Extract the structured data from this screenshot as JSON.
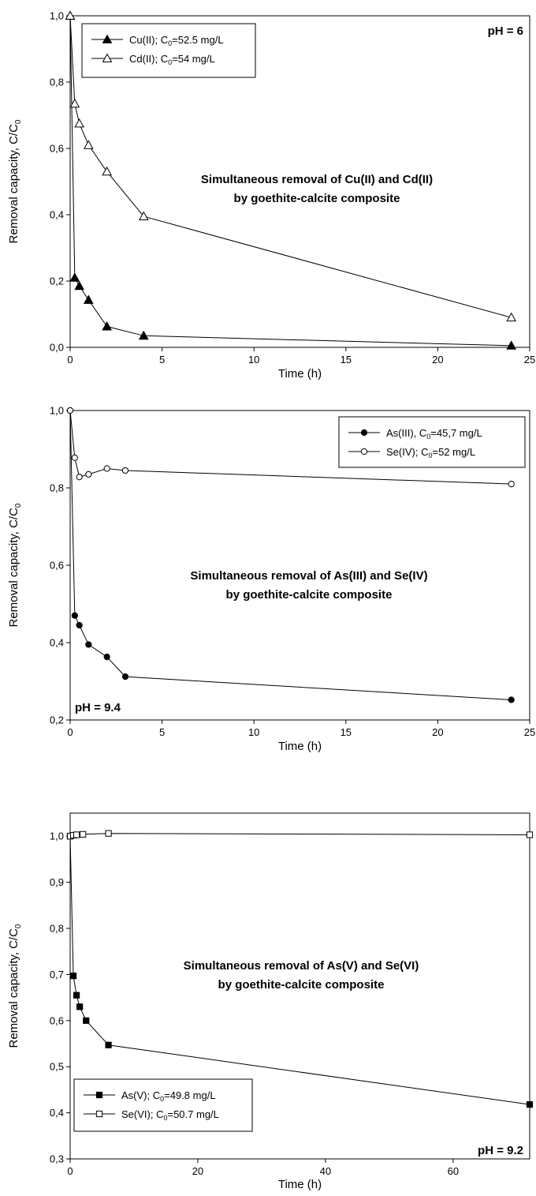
{
  "chart_data": [
    {
      "type": "line",
      "xlabel": "Time (h)",
      "ylabel": "Removal capacity, C/C",
      "ylabel_sub": "0",
      "xlim": [
        0,
        25
      ],
      "ylim": [
        0,
        1.0
      ],
      "xticks": [
        "0",
        "5",
        "10",
        "15",
        "20",
        "25"
      ],
      "yticks": [
        "0,0",
        "0,2",
        "0,4",
        "0,6",
        "0,8",
        "1,0"
      ],
      "grid": false,
      "legend_position": "top-left",
      "annotation": [
        "Simultaneous removal of Cu(II) and Cd(II)",
        "by goethite-calcite composite"
      ],
      "ph_label": "pH = 6",
      "ph_position": "top-right",
      "series": [
        {
          "name": "Cu(II); C",
          "name_sub": "0",
          "name_rest": "=52.5 mg/L",
          "marker": "triangle-filled",
          "x": [
            0,
            0.25,
            0.5,
            1,
            2,
            4,
            24
          ],
          "y": [
            1.0,
            0.21,
            0.185,
            0.143,
            0.063,
            0.035,
            0.005
          ]
        },
        {
          "name": "Cd(II); C",
          "name_sub": "0",
          "name_rest": "=54 mg/L",
          "marker": "triangle-open",
          "x": [
            0,
            0.25,
            0.5,
            1,
            2,
            4,
            24
          ],
          "y": [
            1.0,
            0.735,
            0.675,
            0.61,
            0.53,
            0.395,
            0.09
          ]
        }
      ]
    },
    {
      "type": "line",
      "xlabel": "Time (h)",
      "ylabel": "Removal capacity, C/C",
      "ylabel_sub": "0",
      "xlim": [
        0,
        25
      ],
      "ylim": [
        0.2,
        1.0
      ],
      "xticks": [
        "0",
        "5",
        "10",
        "15",
        "20",
        "25"
      ],
      "yticks": [
        "0,2",
        "0,4",
        "0,6",
        "0,8",
        "1,0"
      ],
      "grid": false,
      "legend_position": "top-right",
      "annotation": [
        "Simultaneous removal of As(III) and Se(IV)",
        "by goethite-calcite composite"
      ],
      "ph_label": "pH = 9.4",
      "ph_position": "bottom-left",
      "series": [
        {
          "name": "As(III), C",
          "name_sub": "0",
          "name_rest": "=45,7 mg/L",
          "marker": "circle-filled",
          "x": [
            0,
            0.25,
            0.5,
            1,
            2,
            3,
            24
          ],
          "y": [
            1.0,
            0.47,
            0.445,
            0.395,
            0.363,
            0.312,
            0.252
          ]
        },
        {
          "name": "Se(IV); C",
          "name_sub": "0",
          "name_rest": "=52 mg/L",
          "marker": "circle-open",
          "x": [
            0,
            0.25,
            0.5,
            1,
            2,
            3,
            24
          ],
          "y": [
            1.0,
            0.878,
            0.828,
            0.835,
            0.85,
            0.845,
            0.81
          ]
        }
      ]
    },
    {
      "type": "line",
      "xlabel": "Time (h)",
      "ylabel": "Removal capacity, C/C",
      "ylabel_sub": "0",
      "xlim": [
        0,
        72
      ],
      "ylim": [
        0.3,
        1.05
      ],
      "xticks": [
        "0",
        "20",
        "40",
        "60"
      ],
      "xtick_values": [
        0,
        20,
        40,
        60
      ],
      "yticks": [
        "0,3",
        "0,4",
        "0,5",
        "0,6",
        "0,7",
        "0,8",
        "0,9",
        "1,0"
      ],
      "grid": false,
      "legend_position": "bottom-left",
      "annotation": [
        "Simultaneous removal of As(V) and Se(VI)",
        "by goethite-calcite composite"
      ],
      "ph_label": "pH = 9.2",
      "ph_position": "bottom-right",
      "series": [
        {
          "name": "As(V); C",
          "name_sub": "0",
          "name_rest": "=49.8 mg/L",
          "marker": "square-filled",
          "x": [
            0,
            0.5,
            1,
            1.5,
            2.5,
            6,
            72
          ],
          "y": [
            1.0,
            0.697,
            0.655,
            0.63,
            0.6,
            0.547,
            0.418
          ]
        },
        {
          "name": "Se(VI); C",
          "name_sub": "0",
          "name_rest": "=50.7 mg/L",
          "marker": "square-open",
          "x": [
            0,
            0.5,
            1,
            2,
            6,
            72
          ],
          "y": [
            1.0,
            1.002,
            1.003,
            1.004,
            1.006,
            1.003
          ]
        }
      ]
    }
  ]
}
